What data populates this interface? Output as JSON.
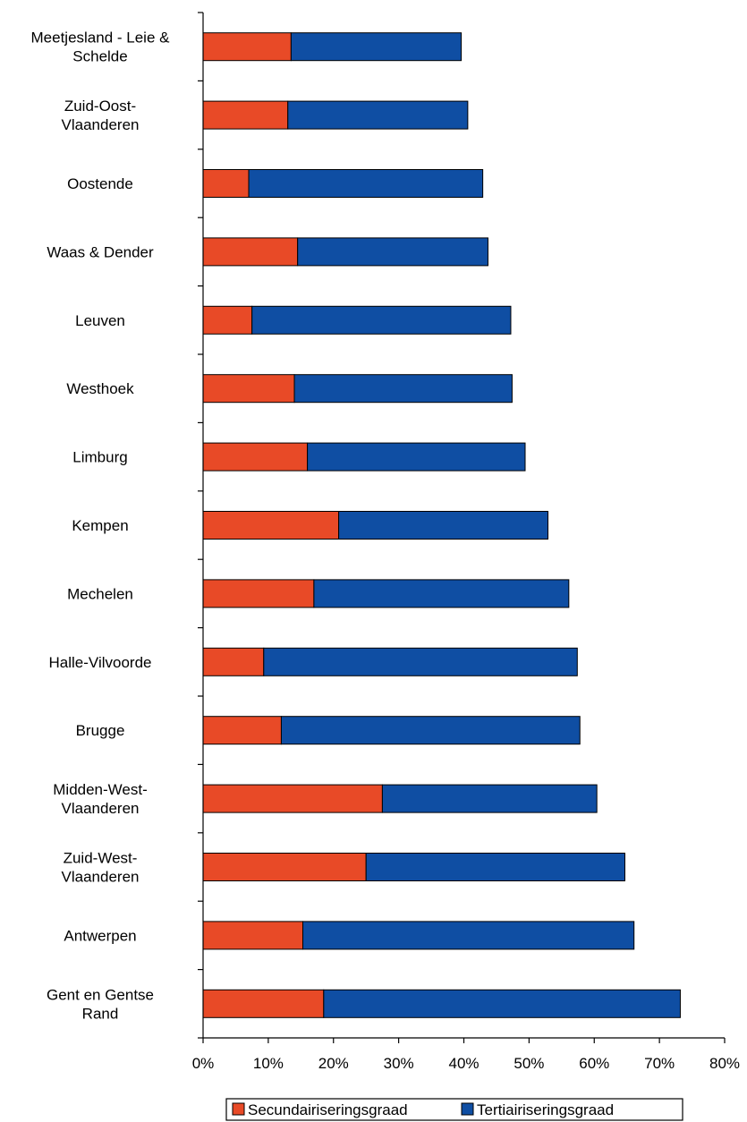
{
  "chart_data": {
    "type": "bar",
    "orientation": "horizontal",
    "stacked": true,
    "categories": [
      [
        "Meetjesland - Leie &",
        "Schelde"
      ],
      [
        "Zuid-Oost-",
        "Vlaanderen"
      ],
      [
        "Oostende"
      ],
      [
        "Waas & Dender"
      ],
      [
        "Leuven"
      ],
      [
        "Westhoek"
      ],
      [
        "Limburg"
      ],
      [
        "Kempen"
      ],
      [
        "Mechelen"
      ],
      [
        "Halle-Vilvoorde"
      ],
      [
        "Brugge"
      ],
      [
        "Midden-West-",
        "Vlaanderen"
      ],
      [
        "Zuid-West-",
        "Vlaanderen"
      ],
      [
        "Antwerpen"
      ],
      [
        "Gent en Gentse",
        "Rand"
      ]
    ],
    "series": [
      {
        "name": "Secundairiseringsgraad",
        "color": "#e84a27",
        "values": [
          13.5,
          13.0,
          7.0,
          14.5,
          7.5,
          14.0,
          16.0,
          20.8,
          17.0,
          9.3,
          12.0,
          27.5,
          25.0,
          15.3,
          18.5
        ]
      },
      {
        "name": "Tertiairiseringsgraad",
        "color": "#0f4ea3",
        "values": [
          26.1,
          27.6,
          35.9,
          29.2,
          39.7,
          33.4,
          33.4,
          32.1,
          39.1,
          48.1,
          45.8,
          32.9,
          39.7,
          50.8,
          54.7
        ]
      }
    ],
    "xlim": [
      0,
      80
    ],
    "xticks": [
      "0%",
      "10%",
      "20%",
      "30%",
      "40%",
      "50%",
      "60%",
      "70%",
      "80%"
    ],
    "grid": false,
    "legend_position": "bottom"
  }
}
